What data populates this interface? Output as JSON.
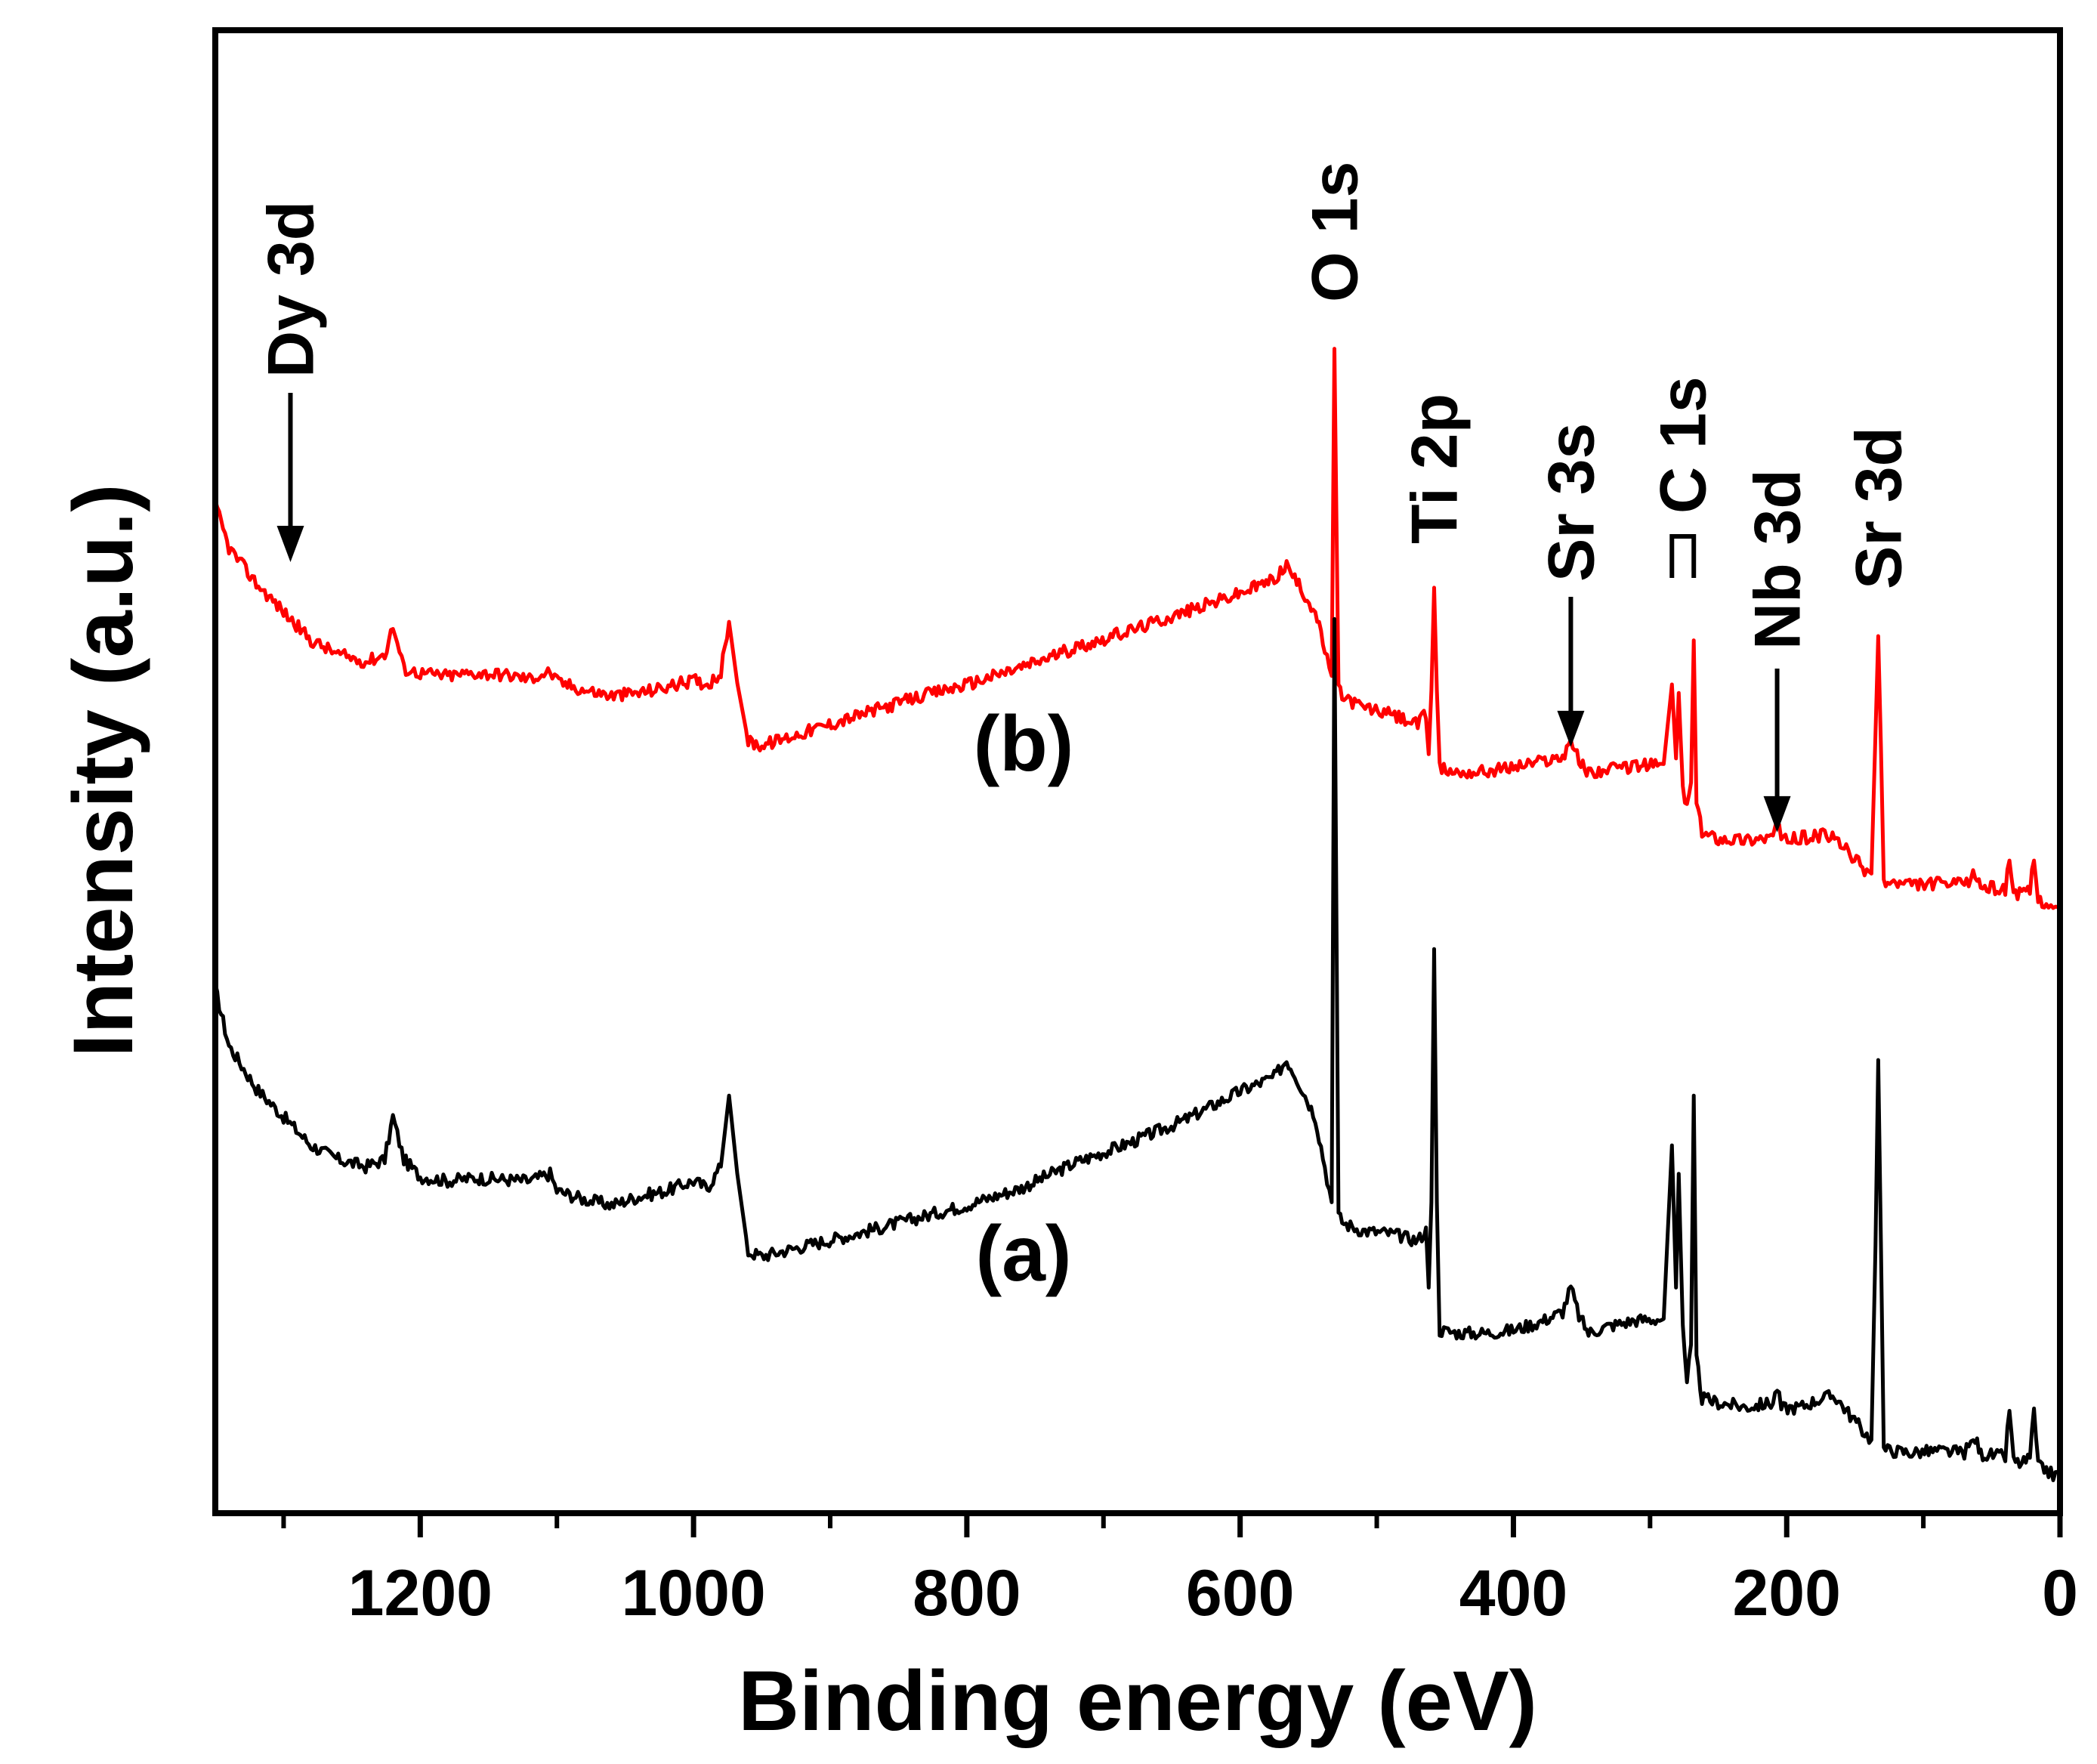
{
  "chart_data": {
    "type": "line",
    "title": "",
    "xlabel": "Binding energy (eV)",
    "ylabel": "Intensity (a.u.)",
    "xlim": [
      1350,
      0
    ],
    "x_reversed": true,
    "x_ticks": [
      1200,
      1000,
      800,
      600,
      400,
      200,
      0
    ],
    "x_minor_ticks": [
      1300,
      1100,
      900,
      700,
      500,
      300,
      100
    ],
    "y_ticks_shown": false,
    "ylim": [
      0,
      100
    ],
    "grid": false,
    "peak_labels": [
      {
        "text": "Dy 3d",
        "x": 1295,
        "arrow_to": 65
      },
      {
        "text": "O 1s",
        "x": 531
      },
      {
        "text": "Ti 2p",
        "x": 458
      },
      {
        "text": "Sr 3s",
        "x": 358,
        "arrow_to": 52
      },
      {
        "text": "C 1s",
        "x": 276
      },
      {
        "text": "Nb 3d",
        "x": 207,
        "arrow_to": 46
      },
      {
        "text": "Sr 3d",
        "x": 133
      }
    ],
    "series": [
      {
        "name": "(a)",
        "color": "#000000",
        "points": [
          [
            1350,
            35
          ],
          [
            1340,
            31
          ],
          [
            1320,
            28
          ],
          [
            1300,
            26
          ],
          [
            1280,
            24
          ],
          [
            1260,
            23
          ],
          [
            1240,
            22.5
          ],
          [
            1226,
            23
          ],
          [
            1220,
            26
          ],
          [
            1212,
            23
          ],
          [
            1200,
            21.8
          ],
          [
            1180,
            21.5
          ],
          [
            1160,
            21.7
          ],
          [
            1140,
            21.6
          ],
          [
            1120,
            21.5
          ],
          [
            1105,
            22
          ],
          [
            1100,
            20.8
          ],
          [
            1080,
            20.2
          ],
          [
            1060,
            19.8
          ],
          [
            1040,
            20.4
          ],
          [
            1020,
            20.8
          ],
          [
            1000,
            21.5
          ],
          [
            990,
            21
          ],
          [
            980,
            22.5
          ],
          [
            974,
            27.5
          ],
          [
            968,
            22
          ],
          [
            960,
            16.5
          ],
          [
            950,
            16.2
          ],
          [
            920,
            16.9
          ],
          [
            880,
            17.8
          ],
          [
            840,
            18.8
          ],
          [
            800,
            19.8
          ],
          [
            760,
            21
          ],
          [
            720,
            22.8
          ],
          [
            680,
            24.2
          ],
          [
            640,
            25.8
          ],
          [
            600,
            27.8
          ],
          [
            575,
            28.8
          ],
          [
            566,
            30
          ],
          [
            560,
            29
          ],
          [
            545,
            26
          ],
          [
            538,
            22.5
          ],
          [
            533,
            20
          ],
          [
            531,
            61
          ],
          [
            528,
            19
          ],
          [
            524,
            18.5
          ],
          [
            510,
            18
          ],
          [
            490,
            17.8
          ],
          [
            470,
            17.3
          ],
          [
            464,
            18
          ],
          [
            462,
            14
          ],
          [
            460,
            20
          ],
          [
            458,
            37.8
          ],
          [
            456,
            20
          ],
          [
            454,
            11
          ],
          [
            440,
            10.8
          ],
          [
            420,
            10.8
          ],
          [
            400,
            11
          ],
          [
            380,
            11.6
          ],
          [
            364,
            12.3
          ],
          [
            358,
            14
          ],
          [
            352,
            12
          ],
          [
            345,
            10.8
          ],
          [
            330,
            11.3
          ],
          [
            310,
            11.7
          ],
          [
            290,
            11.8
          ],
          [
            284,
            24
          ],
          [
            281,
            14
          ],
          [
            279,
            22
          ],
          [
            276,
            11
          ],
          [
            273,
            7
          ],
          [
            270,
            10
          ],
          [
            268,
            27.5
          ],
          [
            266,
            9
          ],
          [
            262,
            6.2
          ],
          [
            250,
            5.9
          ],
          [
            230,
            5.6
          ],
          [
            210,
            5.9
          ],
          [
            207,
            7
          ],
          [
            204,
            5.5
          ],
          [
            190,
            5.6
          ],
          [
            175,
            6.2
          ],
          [
            165,
            6.4
          ],
          [
            155,
            5.2
          ],
          [
            143,
            3.8
          ],
          [
            138,
            3.3
          ],
          [
            135,
            17
          ],
          [
            133,
            30
          ],
          [
            131,
            17
          ],
          [
            129,
            2.6
          ],
          [
            110,
            2.4
          ],
          [
            90,
            2.5
          ],
          [
            70,
            2.4
          ],
          [
            62,
            3.4
          ],
          [
            58,
            2.3
          ],
          [
            40,
            2.1
          ],
          [
            37,
            5.5
          ],
          [
            34,
            1.8
          ],
          [
            28,
            1.6
          ],
          [
            22,
            2
          ],
          [
            19,
            5.5
          ],
          [
            16,
            1.4
          ],
          [
            10,
            1.2
          ],
          [
            5,
            0.8
          ],
          [
            0,
            0.9
          ]
        ]
      },
      {
        "name": "(b)",
        "color": "#ff0000",
        "points": [
          [
            1350,
            69
          ],
          [
            1340,
            66
          ],
          [
            1320,
            63.5
          ],
          [
            1300,
            61.5
          ],
          [
            1280,
            59.5
          ],
          [
            1260,
            58.5
          ],
          [
            1240,
            58
          ],
          [
            1226,
            58.5
          ],
          [
            1220,
            60.5
          ],
          [
            1212,
            57.5
          ],
          [
            1200,
            57.2
          ],
          [
            1180,
            57
          ],
          [
            1160,
            57.2
          ],
          [
            1140,
            57.1
          ],
          [
            1120,
            56.8
          ],
          [
            1105,
            57.3
          ],
          [
            1100,
            56.6
          ],
          [
            1080,
            56
          ],
          [
            1060,
            55.6
          ],
          [
            1040,
            55.8
          ],
          [
            1020,
            56.2
          ],
          [
            1000,
            56.7
          ],
          [
            990,
            56.4
          ],
          [
            980,
            57.2
          ],
          [
            974,
            60.8
          ],
          [
            968,
            56.5
          ],
          [
            960,
            52.4
          ],
          [
            950,
            52.1
          ],
          [
            920,
            53
          ],
          [
            880,
            54.2
          ],
          [
            840,
            55.4
          ],
          [
            800,
            56.4
          ],
          [
            760,
            57.6
          ],
          [
            720,
            59
          ],
          [
            680,
            60.2
          ],
          [
            640,
            61.5
          ],
          [
            600,
            62.8
          ],
          [
            575,
            63.8
          ],
          [
            566,
            64.8
          ],
          [
            560,
            63.8
          ],
          [
            545,
            61.5
          ],
          [
            538,
            58.8
          ],
          [
            533,
            57
          ],
          [
            531,
            80
          ],
          [
            528,
            56
          ],
          [
            524,
            55.5
          ],
          [
            510,
            54.8
          ],
          [
            490,
            54.3
          ],
          [
            470,
            53.6
          ],
          [
            464,
            54.3
          ],
          [
            462,
            51.5
          ],
          [
            460,
            56
          ],
          [
            458,
            63.2
          ],
          [
            456,
            56
          ],
          [
            454,
            50.5
          ],
          [
            440,
            50.2
          ],
          [
            420,
            50.3
          ],
          [
            400,
            50.6
          ],
          [
            380,
            51
          ],
          [
            364,
            51.3
          ],
          [
            358,
            52.6
          ],
          [
            352,
            51
          ],
          [
            345,
            50.2
          ],
          [
            330,
            50.4
          ],
          [
            310,
            50.7
          ],
          [
            290,
            50.8
          ],
          [
            284,
            56.4
          ],
          [
            281,
            51.2
          ],
          [
            279,
            55.8
          ],
          [
            276,
            49
          ],
          [
            273,
            47.8
          ],
          [
            270,
            49.5
          ],
          [
            268,
            59.5
          ],
          [
            266,
            48
          ],
          [
            262,
            46
          ],
          [
            250,
            45.6
          ],
          [
            230,
            45.5
          ],
          [
            210,
            45.7
          ],
          [
            207,
            47
          ],
          [
            204,
            45.4
          ],
          [
            190,
            45.6
          ],
          [
            175,
            45.8
          ],
          [
            165,
            45.6
          ],
          [
            155,
            44.6
          ],
          [
            143,
            43.4
          ],
          [
            138,
            43.1
          ],
          [
            135,
            53
          ],
          [
            133,
            59.8
          ],
          [
            131,
            52
          ],
          [
            129,
            42.5
          ],
          [
            110,
            42.3
          ],
          [
            90,
            42.4
          ],
          [
            70,
            42.3
          ],
          [
            62,
            43.1
          ],
          [
            58,
            42.2
          ],
          [
            40,
            42
          ],
          [
            37,
            44.3
          ],
          [
            34,
            41.8
          ],
          [
            28,
            41.6
          ],
          [
            22,
            41.9
          ],
          [
            19,
            44.1
          ],
          [
            16,
            41.3
          ],
          [
            10,
            41.1
          ],
          [
            5,
            40.6
          ],
          [
            0,
            40.8
          ]
        ]
      }
    ]
  }
}
